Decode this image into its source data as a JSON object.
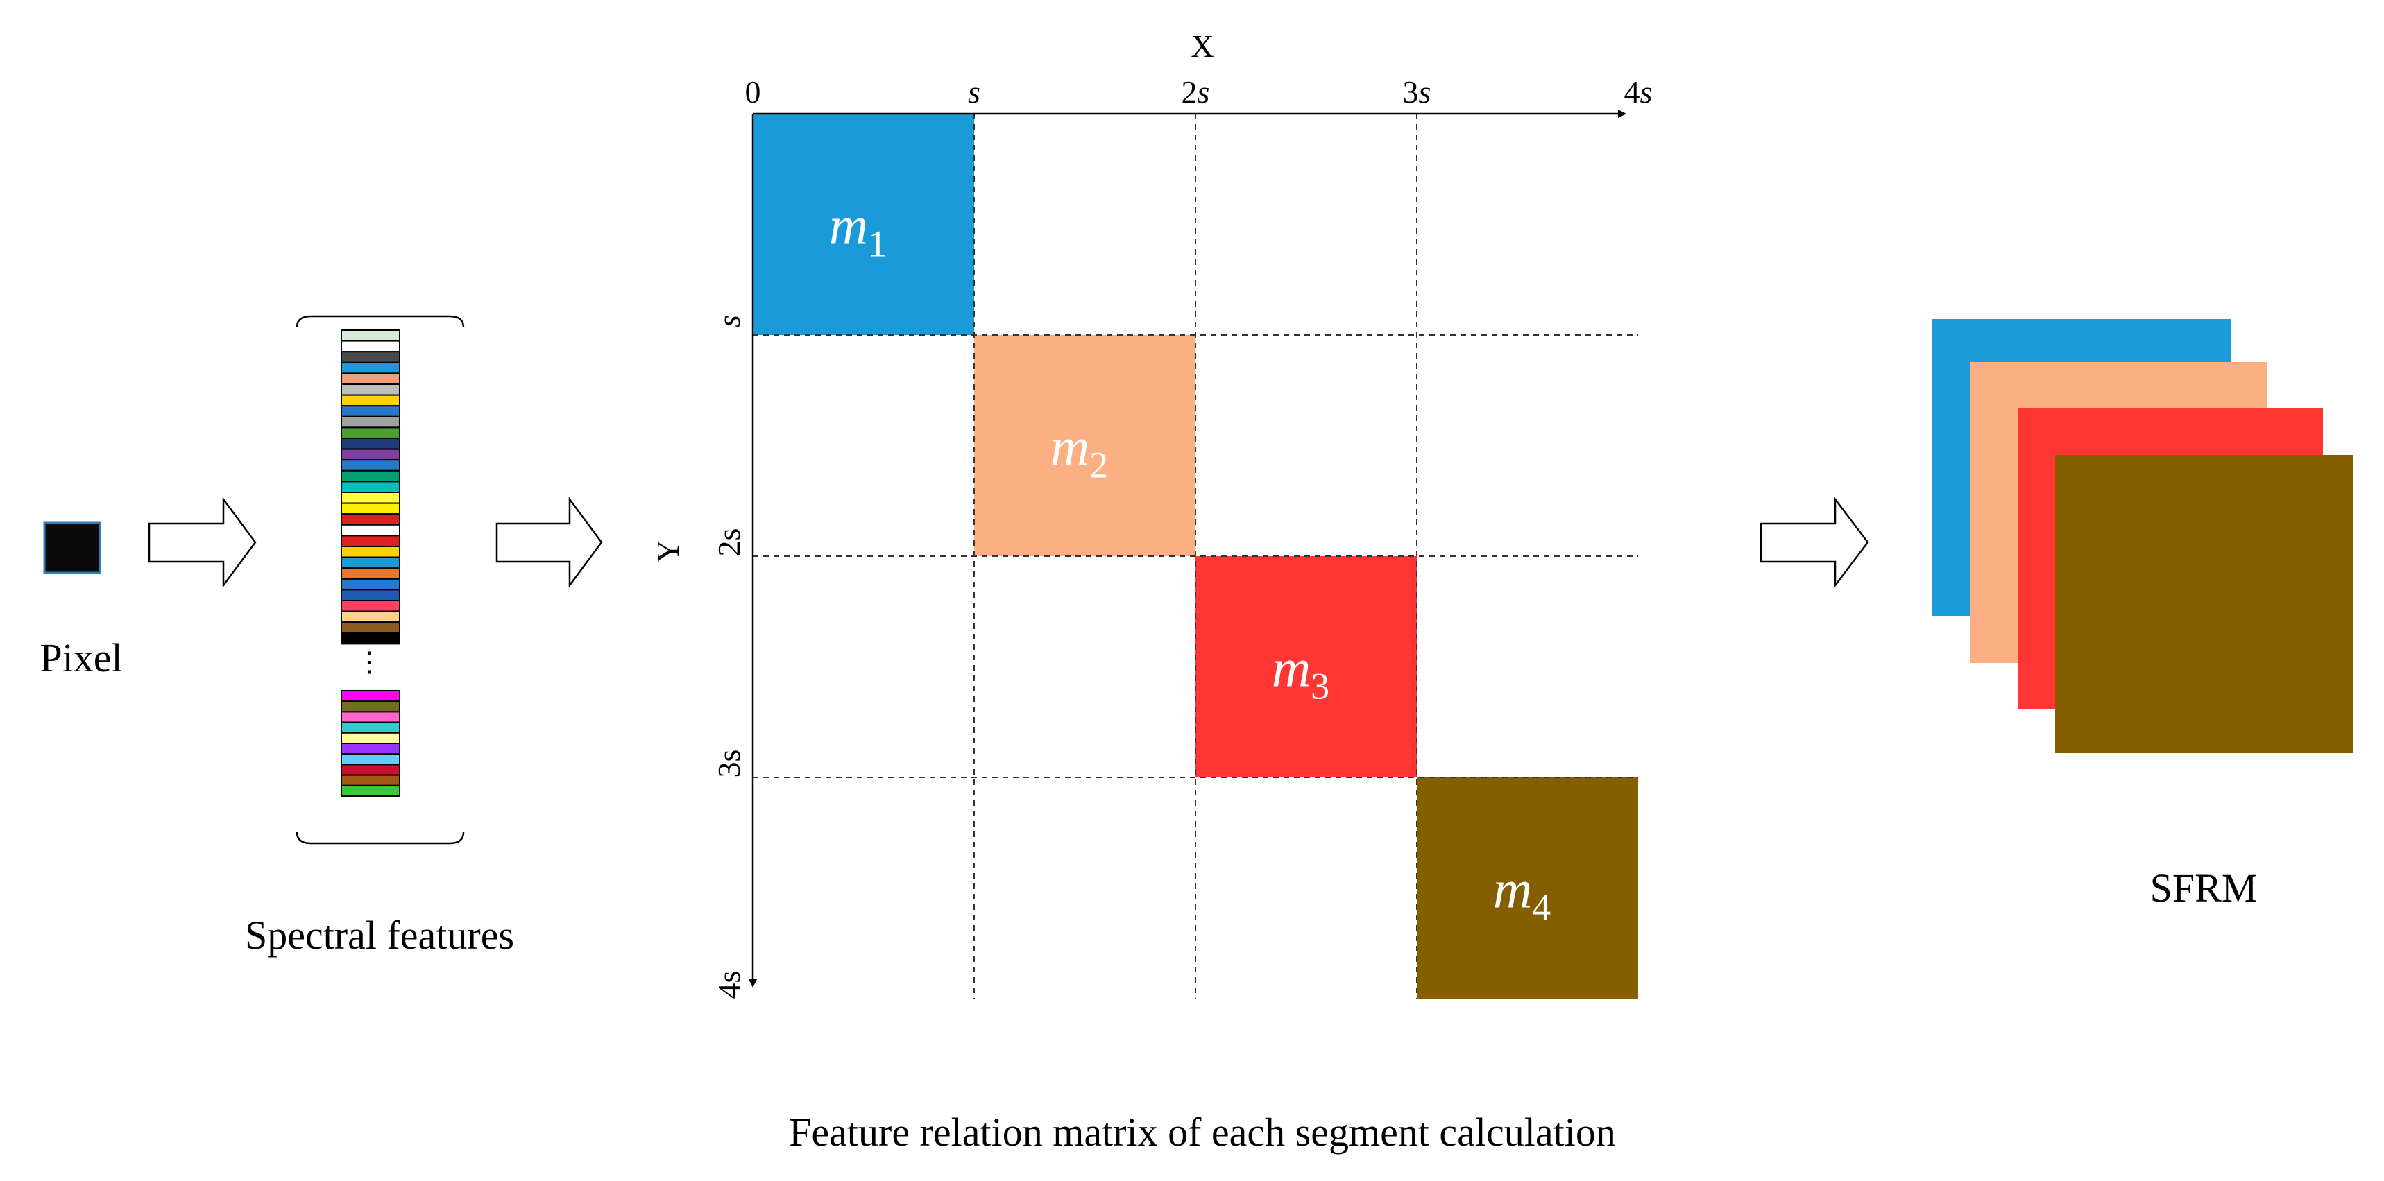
{
  "pixel": {
    "label": "Pixel",
    "color": "#0a0a0a",
    "border": "#2f7ec0"
  },
  "spectral": {
    "label": "Spectral features",
    "ellipsis": "⋮",
    "top_colors": [
      "#d6ecd8",
      "#ffffff",
      "#4a4a4a",
      "#1a9ad6",
      "#f0a078",
      "#bfbfbf",
      "#ffd200",
      "#2878c8",
      "#a0a0a0",
      "#4aa030",
      "#1e3c78",
      "#8040a0",
      "#2878c8",
      "#00a070",
      "#00c0c0",
      "#ffff40",
      "#ffee00",
      "#e02020",
      "#ffffff",
      "#e02020",
      "#ffd200",
      "#1a9ad6",
      "#e87830",
      "#2878c8",
      "#1e5ab4",
      "#ff4060",
      "#ffd28c",
      "#8c5a1e",
      "#000000"
    ],
    "bottom_colors": [
      "#ff00ff",
      "#6e7020",
      "#ff66cc",
      "#33cccc",
      "#ffff99",
      "#9933ff",
      "#66ccff",
      "#c8102e",
      "#a05a14",
      "#33cc33"
    ]
  },
  "matrix": {
    "x_axis_label": "X",
    "y_axis_label": "Y",
    "x_ticks": [
      {
        "num": "0",
        "var": ""
      },
      {
        "num": "",
        "var": "s"
      },
      {
        "num": "2",
        "var": "s"
      },
      {
        "num": "3",
        "var": "s"
      },
      {
        "num": "4",
        "var": "s"
      }
    ],
    "y_ticks": [
      {
        "num": "",
        "var": "s"
      },
      {
        "num": "2s",
        "var": ""
      },
      {
        "num": "3s",
        "var": ""
      },
      {
        "num": "4s",
        "var": ""
      }
    ],
    "blocks": [
      {
        "base": "m",
        "sub": "1",
        "color": "#1a9ad6"
      },
      {
        "base": "m",
        "sub": "2",
        "color": "#fcaf82"
      },
      {
        "base": "m",
        "sub": "3",
        "color": "#ff3633"
      },
      {
        "base": "m",
        "sub": "4",
        "color": "#855e00"
      }
    ],
    "caption": "Feature relation matrix of each segment calculation"
  },
  "sfrm": {
    "label": "SFRM",
    "colors": [
      "#1a9ad6",
      "#fcaf82",
      "#ff3633",
      "#855e00"
    ]
  }
}
